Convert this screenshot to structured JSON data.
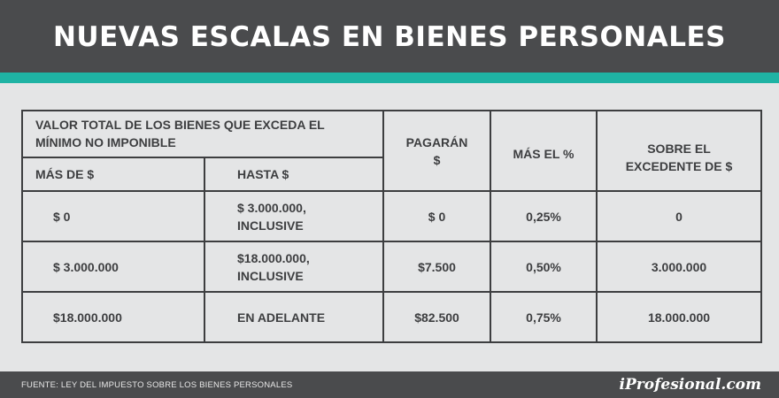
{
  "header": {
    "title": "NUEVAS ESCALAS EN BIENES PERSONALES"
  },
  "table": {
    "group_header": "VALOR TOTAL DE LOS BIENES QUE EXCEDA EL MÍNIMO NO IMPONIBLE",
    "col_mas_de": "MÁS DE $",
    "col_hasta": "HASTA $",
    "col_pagaran": "PAGARÁN $",
    "col_mas_el_pct": "MÁS EL %",
    "col_sobre_excedente": "SOBRE EL EXCEDENTE DE $",
    "rows": [
      {
        "mas_de": "$ 0",
        "hasta": "$ 3.000.000, INCLUSIVE",
        "pagaran": "$ 0",
        "pct": "0,25%",
        "excedente": "0"
      },
      {
        "mas_de": "$ 3.000.000",
        "hasta": "$18.000.000, INCLUSIVE",
        "pagaran": "$7.500",
        "pct": "0,50%",
        "excedente": "3.000.000"
      },
      {
        "mas_de": "$18.000.000",
        "hasta": "EN ADELANTE",
        "pagaran": "$82.500",
        "pct": "0,75%",
        "excedente": "18.000.000"
      }
    ]
  },
  "footer": {
    "source": "FUENTE: LEY DEL IMPUESTO SOBRE LOS BIENES PERSONALES",
    "brand": "iProfesional.com"
  }
}
